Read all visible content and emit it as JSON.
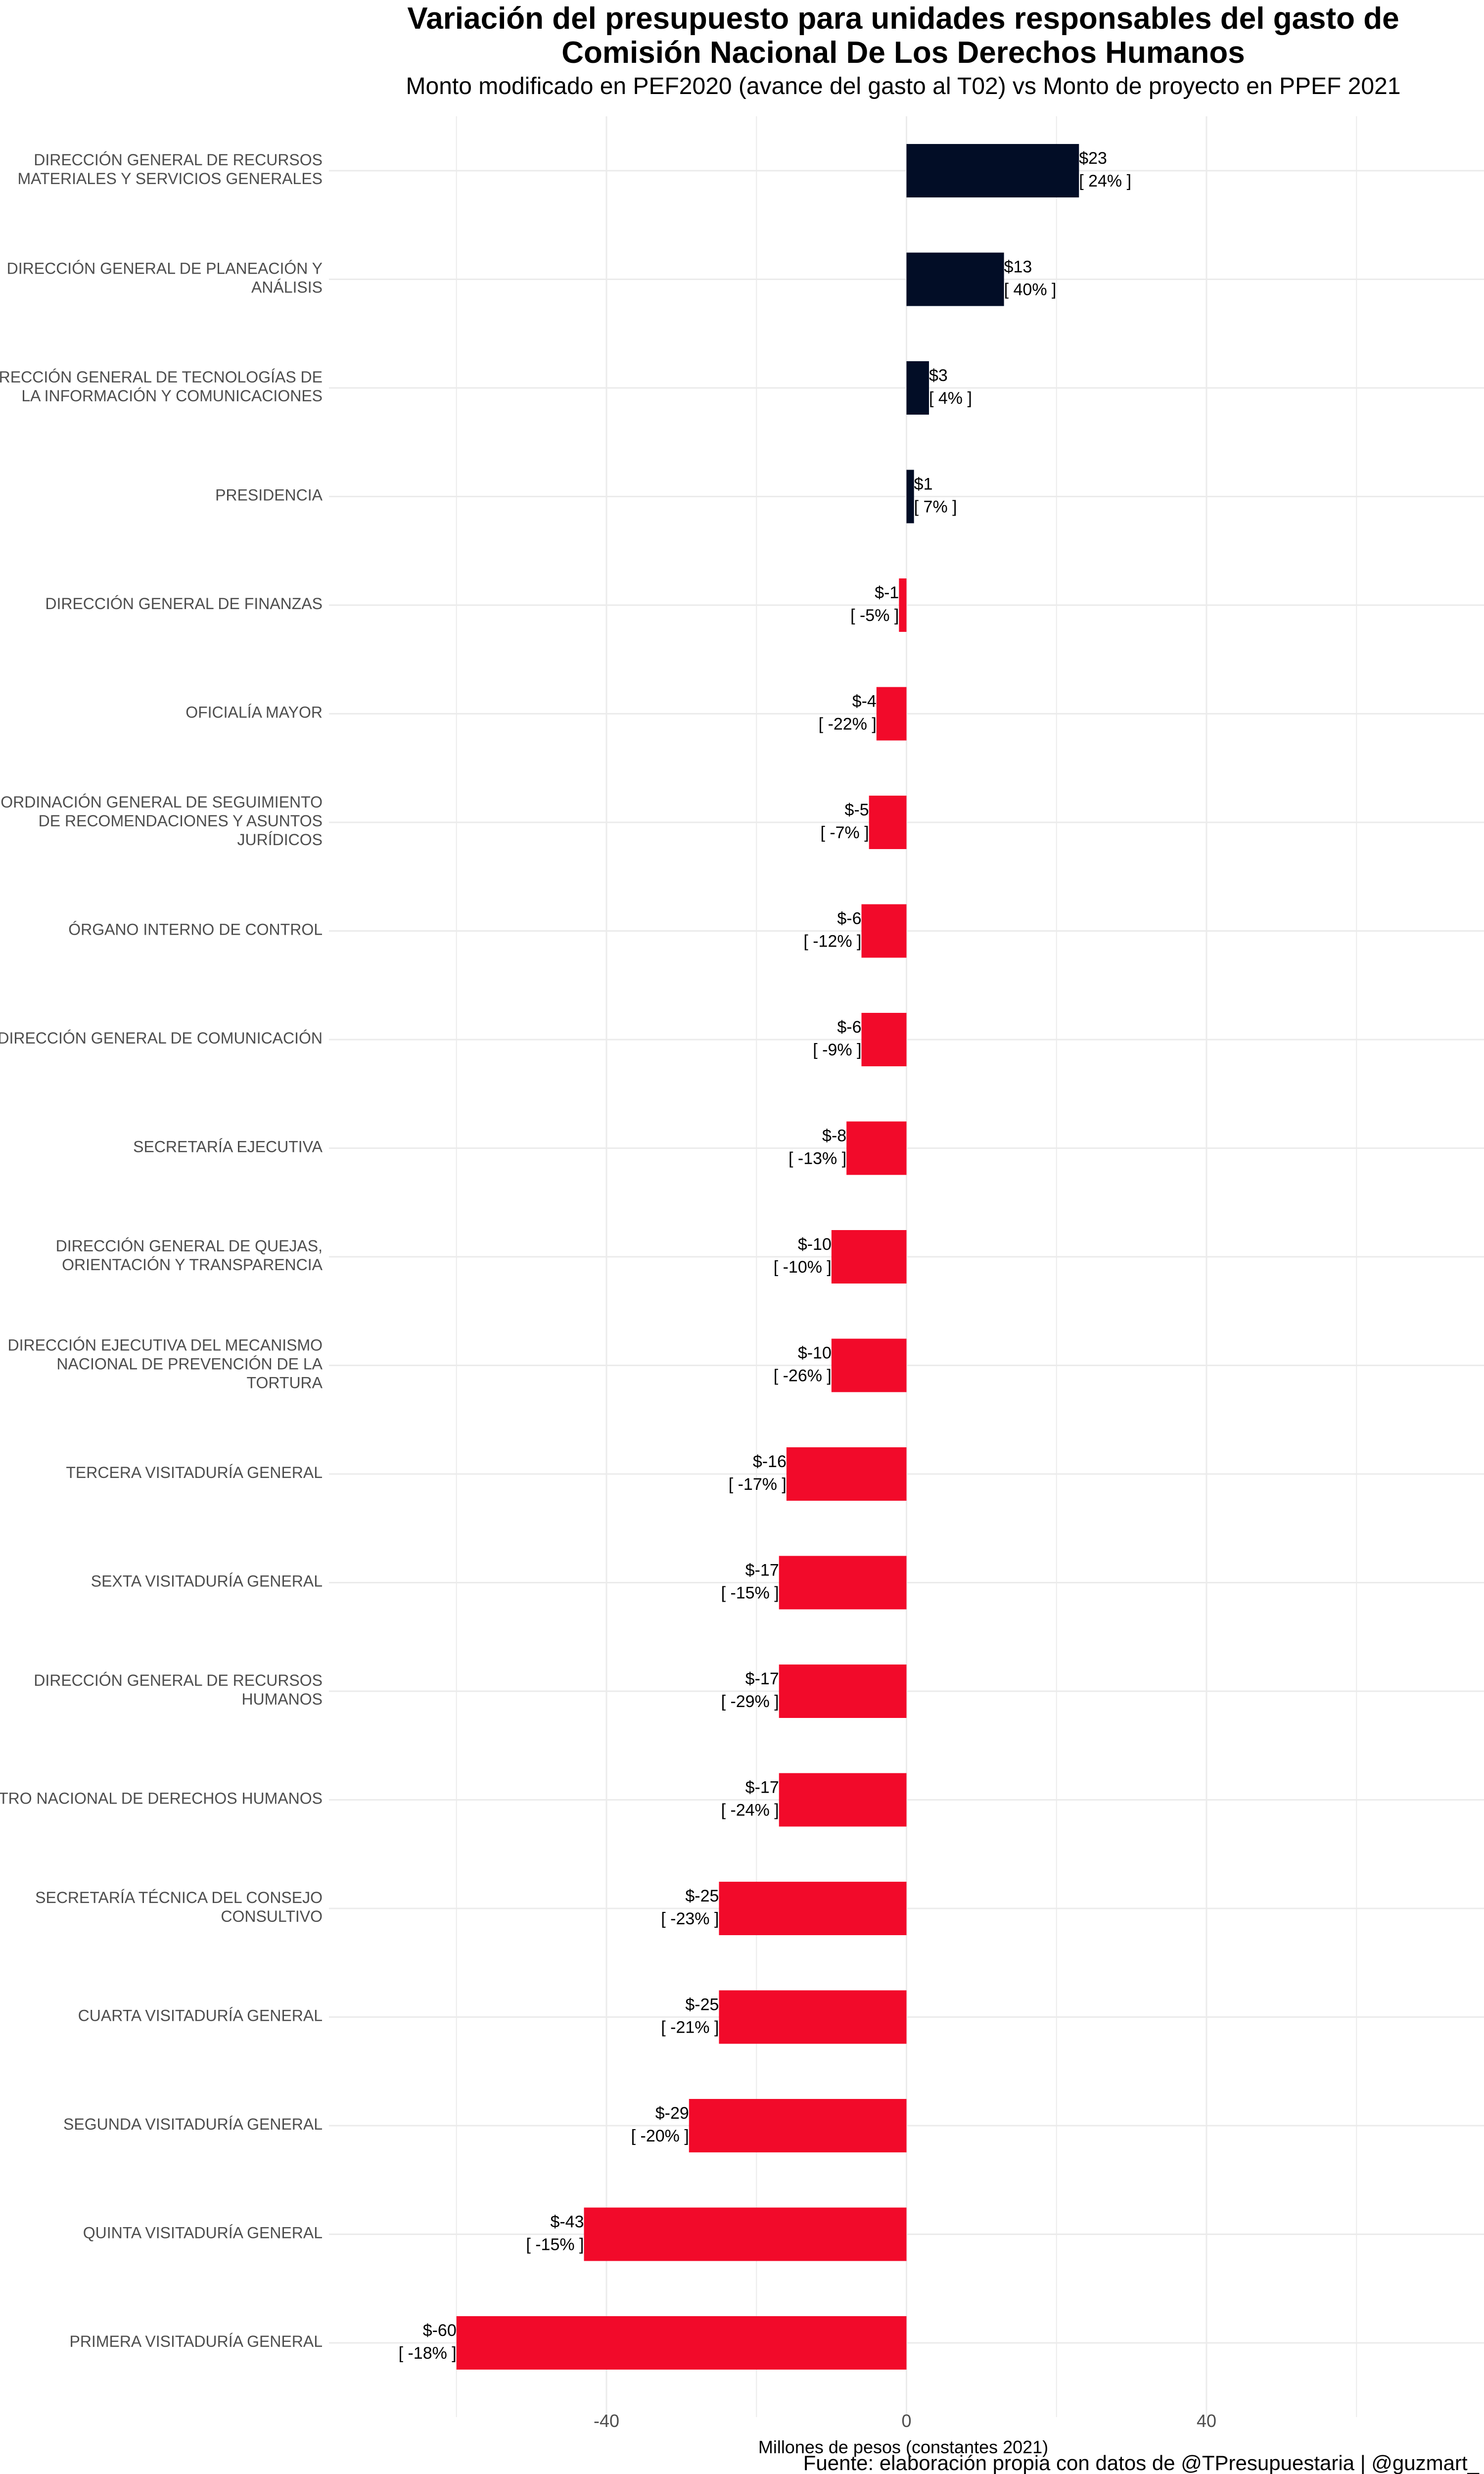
{
  "chart_data": {
    "type": "bar",
    "orientation": "horizontal",
    "title": "Variación del presupuesto para unidades responsables del gasto de Comisión Nacional De Los Derechos Humanos",
    "title_lines": [
      "Variación del presupuesto para unidades responsables del gasto de",
      "Comisión Nacional De Los Derechos Humanos"
    ],
    "subtitle": "Monto modificado en PEF2020 (avance del gasto al T02) vs Monto de proyecto en PPEF 2021",
    "xlabel": "Millones de pesos (constantes 2021)",
    "ylabel": "",
    "caption": "Fuente: elaboración propia con datos de @TPresupuestaria | @guzmart_",
    "xlim": [
      -77,
      77
    ],
    "x_ticks": [
      -40,
      0,
      40
    ],
    "x_tick_labels": [
      "-40",
      "0",
      "40"
    ],
    "grid": true,
    "legend": "none",
    "colors": {
      "positive": "#020d26",
      "negative": "#f20a2a",
      "grid": "#ebebeb"
    },
    "categories": [
      [
        "DIRECCIÓN GENERAL DE RECURSOS",
        "MATERIALES Y SERVICIOS GENERALES"
      ],
      [
        "DIRECCIÓN GENERAL DE PLANEACIÓN Y",
        "ANÁLISIS"
      ],
      [
        "DIRECCIÓN GENERAL DE TECNOLOGÍAS DE",
        "LA INFORMACIÓN Y COMUNICACIONES"
      ],
      [
        "PRESIDENCIA"
      ],
      [
        "DIRECCIÓN GENERAL DE FINANZAS"
      ],
      [
        "OFICIALÍA MAYOR"
      ],
      [
        "COORDINACIÓN GENERAL DE SEGUIMIENTO",
        "DE RECOMENDACIONES Y ASUNTOS",
        "JURÍDICOS"
      ],
      [
        "ÓRGANO INTERNO DE CONTROL"
      ],
      [
        "DIRECCIÓN GENERAL DE COMUNICACIÓN"
      ],
      [
        "SECRETARÍA EJECUTIVA"
      ],
      [
        "DIRECCIÓN GENERAL DE QUEJAS,",
        "ORIENTACIÓN Y TRANSPARENCIA"
      ],
      [
        "DIRECCIÓN EJECUTIVA DEL MECANISMO",
        "NACIONAL DE PREVENCIÓN DE LA",
        "TORTURA"
      ],
      [
        "TERCERA VISITADURÍA GENERAL"
      ],
      [
        "SEXTA VISITADURÍA GENERAL"
      ],
      [
        "DIRECCIÓN GENERAL DE RECURSOS",
        "HUMANOS"
      ],
      [
        "CENTRO NACIONAL DE DERECHOS HUMANOS"
      ],
      [
        "SECRETARÍA TÉCNICA DEL CONSEJO",
        "CONSULTIVO"
      ],
      [
        "CUARTA VISITADURÍA GENERAL"
      ],
      [
        "SEGUNDA VISITADURÍA GENERAL"
      ],
      [
        "QUINTA VISITADURÍA GENERAL"
      ],
      [
        "PRIMERA VISITADURÍA GENERAL"
      ]
    ],
    "values": [
      23,
      13,
      3,
      1,
      -1,
      -4,
      -5,
      -6,
      -6,
      -8,
      -10,
      -10,
      -16,
      -17,
      -17,
      -17,
      -25,
      -25,
      -29,
      -43,
      -60
    ],
    "value_labels": [
      "$23",
      "$13",
      "$3",
      "$1",
      "$-1",
      "$-4",
      "$-5",
      "$-6",
      "$-6",
      "$-8",
      "$-10",
      "$-10",
      "$-16",
      "$-17",
      "$-17",
      "$-17",
      "$-25",
      "$-25",
      "$-29",
      "$-43",
      "$-60"
    ],
    "pct_labels": [
      "[ 24% ]",
      "[ 40% ]",
      "[ 4% ]",
      "[ 7% ]",
      "[ -5% ]",
      "[ -22% ]",
      "[ -7% ]",
      "[ -12% ]",
      "[ -9% ]",
      "[ -13% ]",
      "[ -10% ]",
      "[ -26% ]",
      "[ -17% ]",
      "[ -15% ]",
      "[ -29% ]",
      "[ -24% ]",
      "[ -23% ]",
      "[ -21% ]",
      "[ -20% ]",
      "[ -15% ]",
      "[ -18% ]"
    ]
  }
}
